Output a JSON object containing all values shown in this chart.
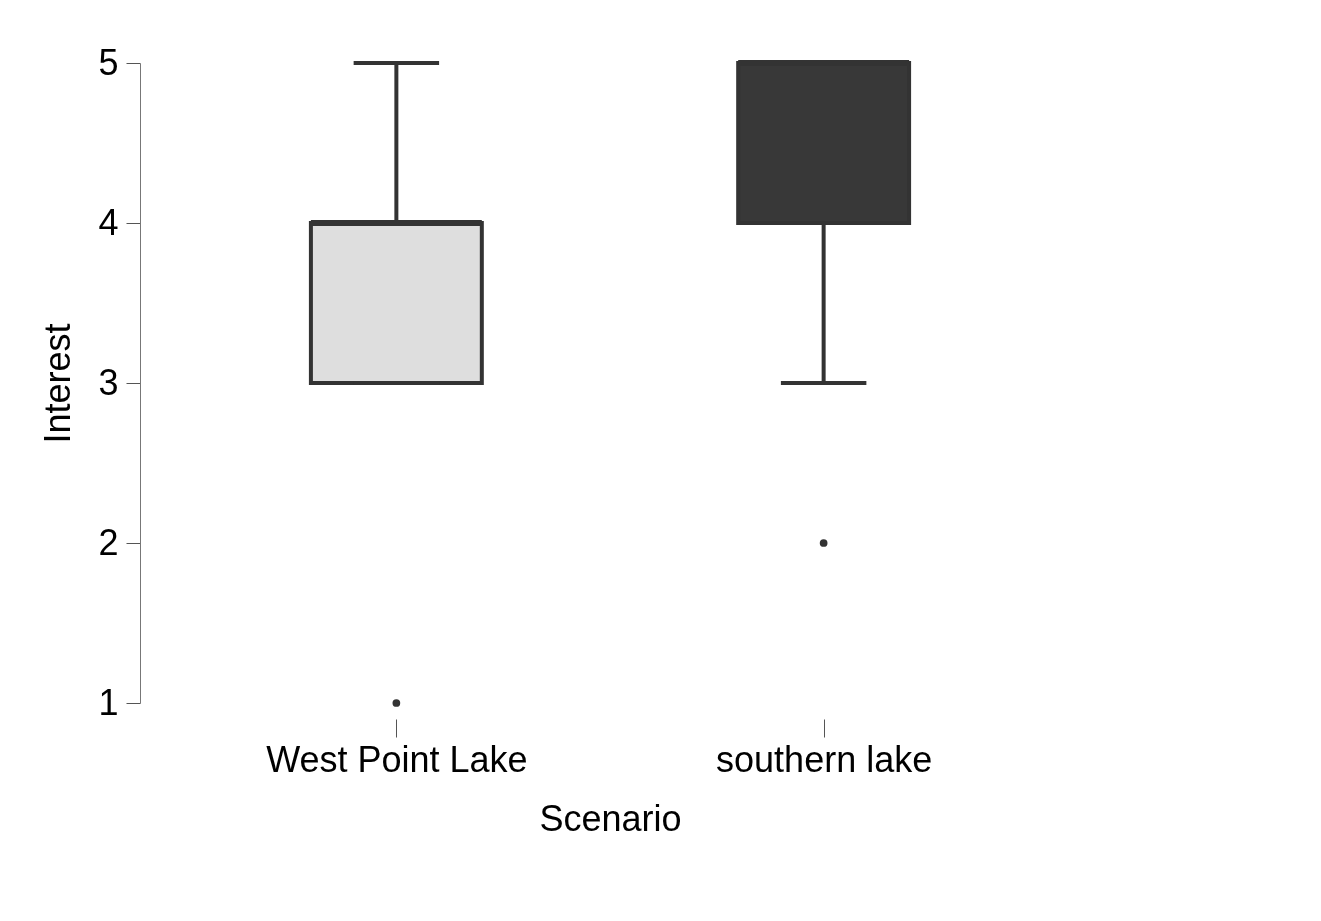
{
  "chart_data": {
    "type": "box",
    "xlabel": "Scenario",
    "ylabel": "Interest",
    "categories": [
      "West Point Lake",
      "southern lake"
    ],
    "colors": [
      "#dedede",
      "#383838"
    ],
    "boxes": [
      {
        "low": 3,
        "q1": 3,
        "median": 4,
        "q3": 4,
        "high": 5,
        "outliers": [
          1
        ]
      },
      {
        "low": 3,
        "q1": 4,
        "median": 5,
        "q3": 5,
        "high": 5,
        "outliers": [
          2
        ]
      }
    ],
    "ylim": [
      1,
      5
    ],
    "yticks": [
      1,
      2,
      3,
      4,
      5
    ]
  }
}
